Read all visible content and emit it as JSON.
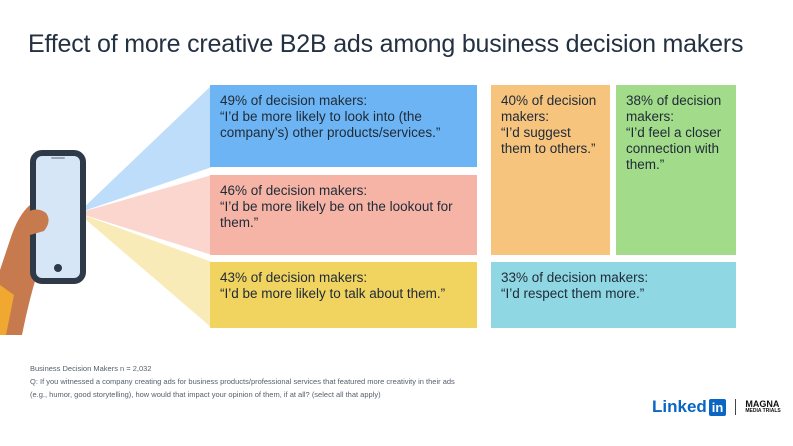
{
  "title": "Effect of more creative B2B ads among business decision makers",
  "chart_data": {
    "type": "table",
    "title": "Effect of more creative B2B ads among business decision makers",
    "items": [
      {
        "percent": 49,
        "label": "49% of decision makers:",
        "quote": "“I’d be more likely to look into (the company’s) other products/services.”",
        "color": "#6cb4f3"
      },
      {
        "percent": 46,
        "label": "46% of decision makers:",
        "quote": "“I’d be more likely be on the lookout for them.”",
        "color": "#f6b4a6"
      },
      {
        "percent": 43,
        "label": "43% of decision makers:",
        "quote": "“I’d be more likely to talk about them.”",
        "color": "#f1d35f"
      },
      {
        "percent": 40,
        "label": "40% of decision makers:",
        "quote": "“I’d suggest them to others.”",
        "color": "#f7c47e"
      },
      {
        "percent": 38,
        "label": "38% of decision makers:",
        "quote": "“I’d feel a closer connection with them.”",
        "color": "#a2db8a"
      },
      {
        "percent": 33,
        "label": "33% of decision makers:",
        "quote": "“I’d respect them more.”",
        "color": "#8fd7e2"
      }
    ]
  },
  "footnote": {
    "sample": "Business Decision Makers n = 2,032",
    "question_line1": "Q: If you witnessed a company creating ads for business products/professional services that featured more creativity in their ads",
    "question_line2": "(e.g., humor, good storytelling), how would that impact your opinion of them, if at all? (select all that apply)"
  },
  "brand": {
    "linkedin_text": "Linked",
    "linkedin_box": "in",
    "magna_line1": "MAGNA",
    "magna_line2": "MEDIA TRIALS"
  },
  "icons": [
    "phone-icon",
    "hand-icon"
  ]
}
